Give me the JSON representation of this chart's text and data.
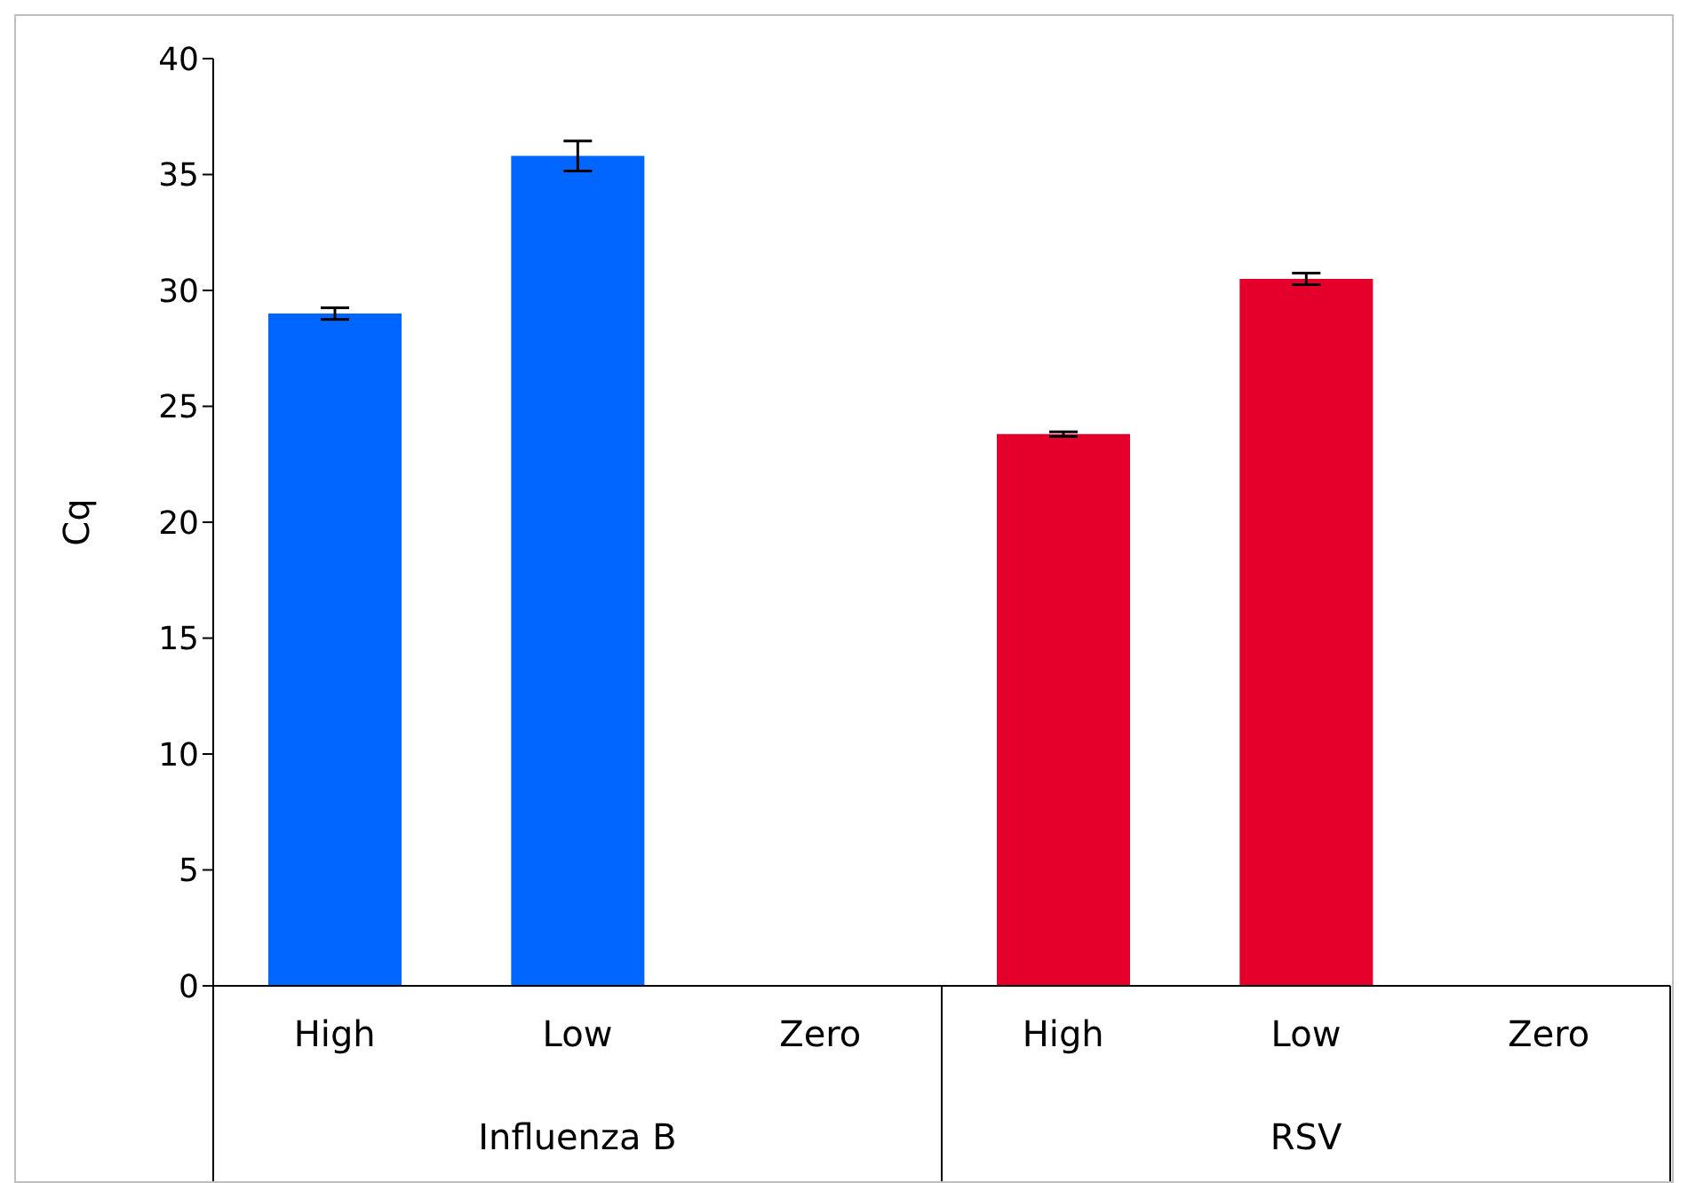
{
  "chart_data": {
    "type": "bar",
    "ylabel": "Cq",
    "categories": [
      "High",
      "Low",
      "Zero",
      "High",
      "Low",
      "Zero"
    ],
    "values": [
      29.0,
      35.8,
      null,
      23.8,
      30.5,
      null
    ],
    "colors": [
      "#0066ff",
      "#0066ff",
      null,
      "#e4002b",
      "#e4002b",
      null
    ],
    "errors": [
      0.25,
      0.65,
      null,
      0.1,
      0.25,
      null
    ],
    "ylim": [
      0,
      40
    ],
    "yticks": [
      0,
      5,
      10,
      15,
      20,
      25,
      30,
      35,
      40
    ],
    "grid": false,
    "annotations": [
      "Influenza B",
      "RSV"
    ]
  }
}
